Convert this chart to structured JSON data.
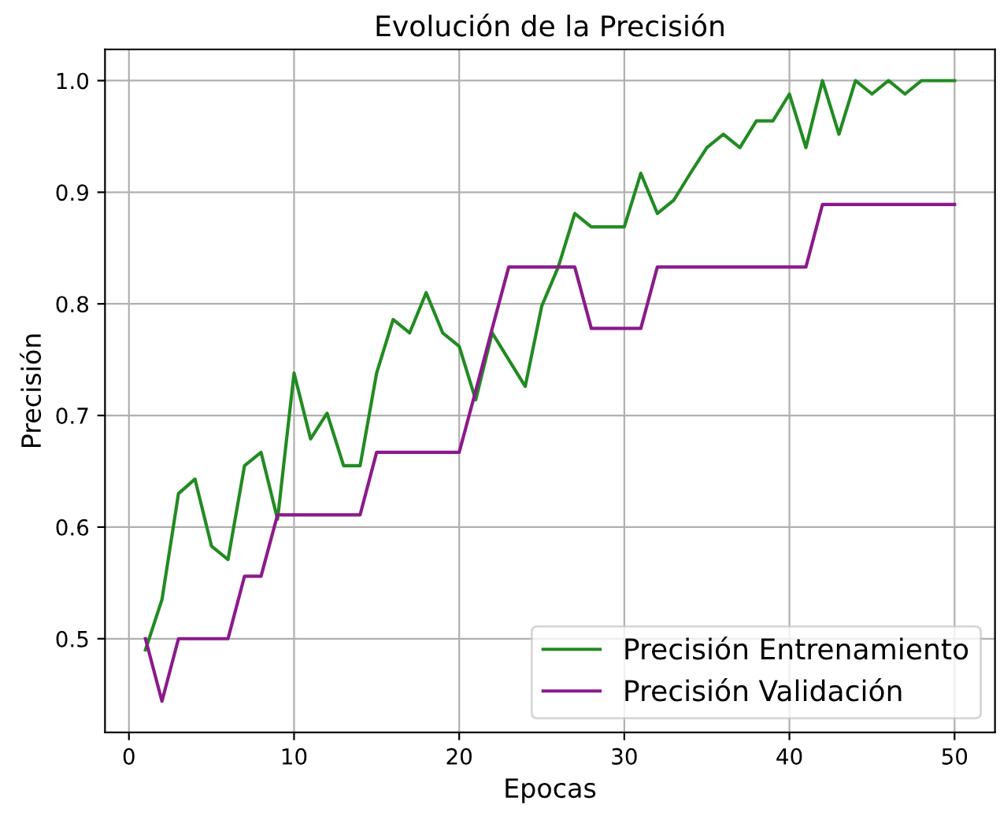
{
  "chart_data": {
    "type": "line",
    "title": "Evolución de la Precisión",
    "xlabel": "Epocas",
    "ylabel": "Precisión",
    "x": [
      1,
      2,
      3,
      4,
      5,
      6,
      7,
      8,
      9,
      10,
      11,
      12,
      13,
      14,
      15,
      16,
      17,
      18,
      19,
      20,
      21,
      22,
      23,
      24,
      25,
      26,
      27,
      28,
      29,
      30,
      31,
      32,
      33,
      34,
      35,
      36,
      37,
      38,
      39,
      40,
      41,
      42,
      43,
      44,
      45,
      46,
      47,
      48,
      49,
      50
    ],
    "series": [
      {
        "name": "Precisión Entrenamiento",
        "color": "#228b22",
        "values": [
          0.49,
          0.535,
          0.63,
          0.643,
          0.583,
          0.571,
          0.655,
          0.667,
          0.607,
          0.738,
          0.679,
          0.702,
          0.655,
          0.655,
          0.738,
          0.786,
          0.774,
          0.81,
          0.774,
          0.762,
          0.714,
          0.774,
          0.75,
          0.726,
          0.798,
          0.833,
          0.881,
          0.869,
          0.869,
          0.869,
          0.917,
          0.881,
          0.893,
          0.917,
          0.94,
          0.952,
          0.94,
          0.964,
          0.964,
          0.988,
          0.94,
          1.0,
          0.952,
          1.0,
          0.988,
          1.0,
          0.988,
          1.0,
          1.0,
          1.0
        ]
      },
      {
        "name": "Precisión Validación",
        "color": "#8b1a8b",
        "values": [
          0.5,
          0.444,
          0.5,
          0.5,
          0.5,
          0.5,
          0.556,
          0.556,
          0.611,
          0.611,
          0.611,
          0.611,
          0.611,
          0.611,
          0.667,
          0.667,
          0.667,
          0.667,
          0.667,
          0.667,
          0.722,
          0.778,
          0.833,
          0.833,
          0.833,
          0.833,
          0.833,
          0.778,
          0.778,
          0.778,
          0.778,
          0.833,
          0.833,
          0.833,
          0.833,
          0.833,
          0.833,
          0.833,
          0.833,
          0.833,
          0.833,
          0.889,
          0.889,
          0.889,
          0.889,
          0.889,
          0.889,
          0.889,
          0.889,
          0.889
        ]
      }
    ],
    "xlim": [
      -1.45,
      52.45
    ],
    "ylim": [
      0.416,
      1.028
    ],
    "xticks": [
      0,
      10,
      20,
      30,
      40,
      50
    ],
    "yticks": [
      {
        "value": 0.5,
        "label": "0.5"
      },
      {
        "value": 0.6,
        "label": "0.6"
      },
      {
        "value": 0.7,
        "label": "0.7"
      },
      {
        "value": 0.8,
        "label": "0.8"
      },
      {
        "value": 0.9,
        "label": "0.9"
      },
      {
        "value": 1.0,
        "label": "1.0"
      }
    ],
    "grid": true,
    "legend": "lower right",
    "marker": "none",
    "line_style": "solid"
  }
}
